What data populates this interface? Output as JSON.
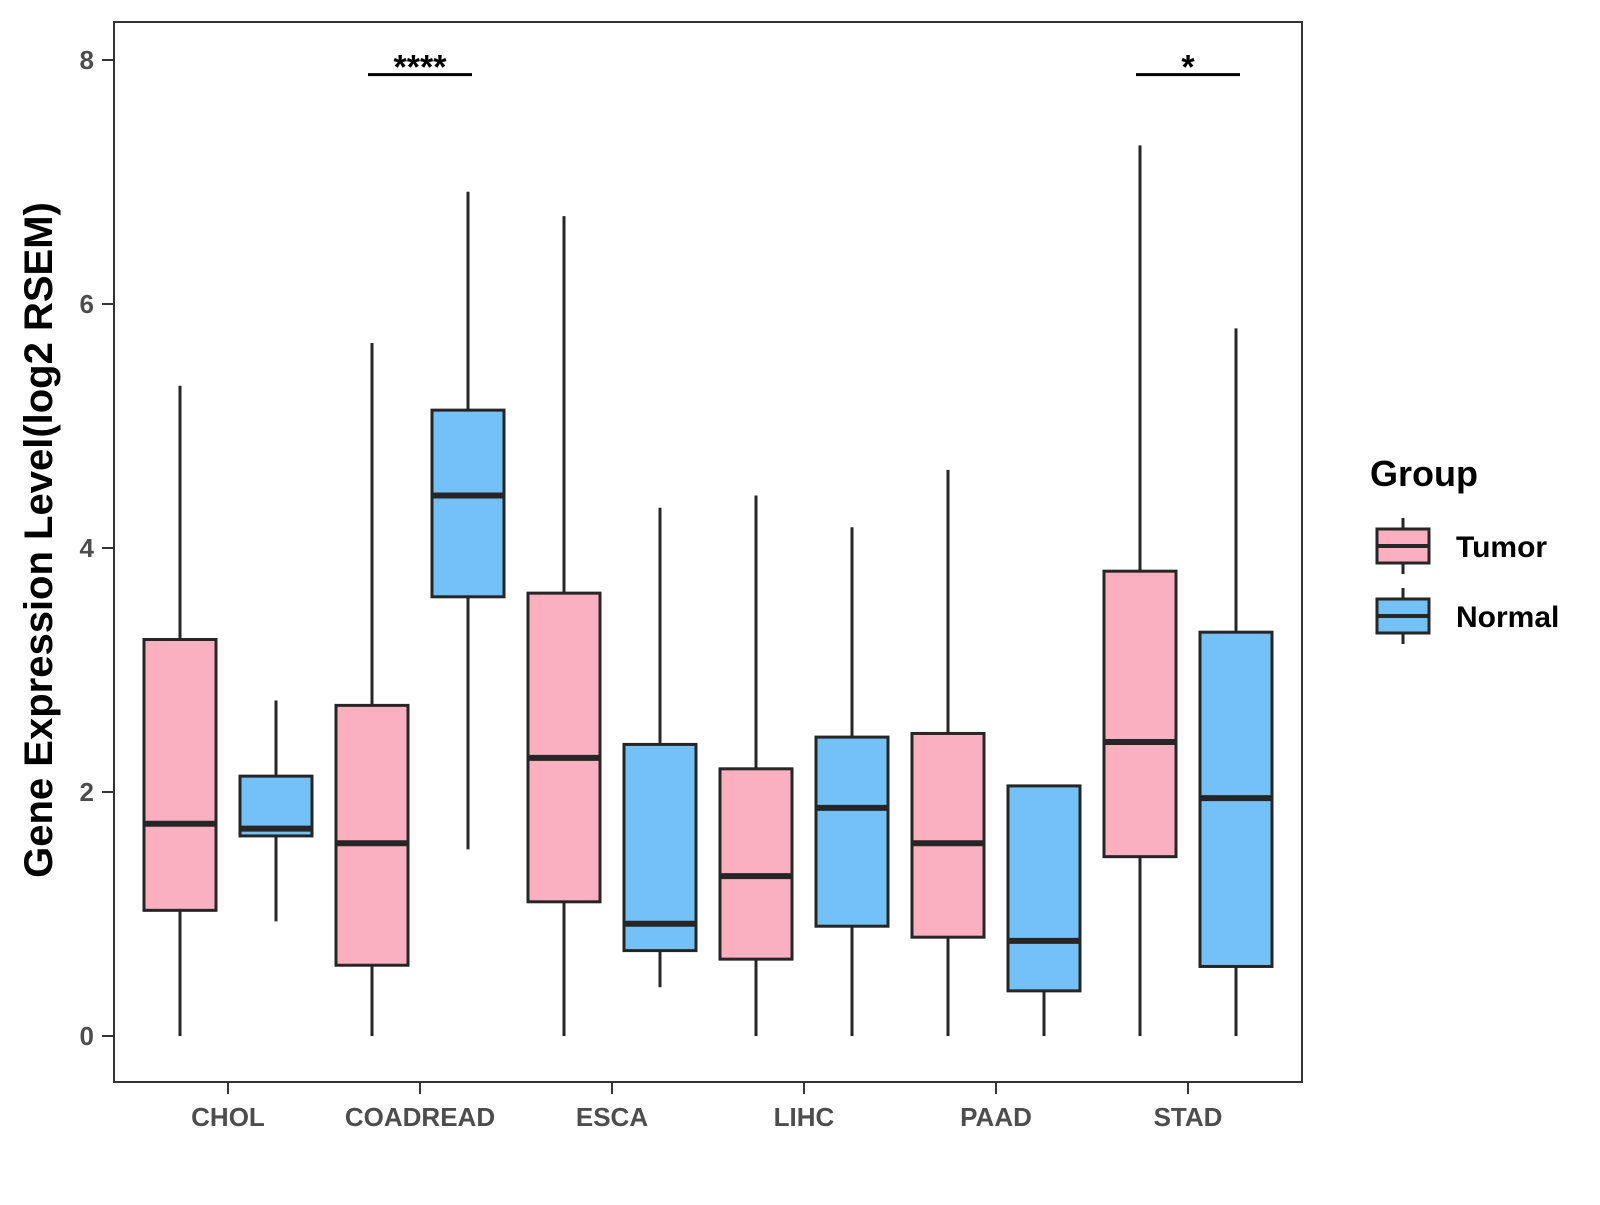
{
  "chart_data": {
    "type": "boxplot",
    "title": "",
    "xlabel": "",
    "ylabel": "Gene Expression Level(log2 RSEM)",
    "ylim": [
      -0.4,
      8.3
    ],
    "yticks": [
      0,
      2,
      4,
      6,
      8
    ],
    "categories": [
      "CHOL",
      "COADREAD",
      "ESCA",
      "LIHC",
      "PAAD",
      "STAD"
    ],
    "legend": {
      "title": "Group",
      "position": "right",
      "entries": [
        {
          "name": "Tumor",
          "color": "#FBB0C1"
        },
        {
          "name": "Normal",
          "color": "#74C1F8"
        }
      ]
    },
    "series": [
      {
        "name": "Tumor",
        "color": "#FBB0C1",
        "boxes": [
          {
            "min": 0.0,
            "q1": 1.03,
            "median": 1.74,
            "q3": 3.25,
            "max": 5.33
          },
          {
            "min": 0.0,
            "q1": 0.58,
            "median": 1.58,
            "q3": 2.71,
            "max": 5.68
          },
          {
            "min": 0.0,
            "q1": 1.1,
            "median": 2.28,
            "q3": 3.63,
            "max": 6.72
          },
          {
            "min": 0.0,
            "q1": 0.63,
            "median": 1.31,
            "q3": 2.19,
            "max": 4.43
          },
          {
            "min": 0.0,
            "q1": 0.81,
            "median": 1.58,
            "q3": 2.48,
            "max": 4.64
          },
          {
            "min": 0.0,
            "q1": 1.47,
            "median": 2.41,
            "q3": 3.81,
            "max": 7.3
          }
        ]
      },
      {
        "name": "Normal",
        "color": "#74C1F8",
        "boxes": [
          {
            "min": 0.94,
            "q1": 1.64,
            "median": 1.7,
            "q3": 2.13,
            "max": 2.75
          },
          {
            "min": 1.53,
            "q1": 3.6,
            "median": 4.43,
            "q3": 5.13,
            "max": 6.92
          },
          {
            "min": 0.4,
            "q1": 0.7,
            "median": 0.92,
            "q3": 2.39,
            "max": 4.33
          },
          {
            "min": 0.0,
            "q1": 0.9,
            "median": 1.87,
            "q3": 2.45,
            "max": 4.17
          },
          {
            "min": 0.0,
            "q1": 0.37,
            "median": 0.78,
            "q3": 2.05,
            "max": 2.05
          },
          {
            "min": 0.0,
            "q1": 0.57,
            "median": 1.95,
            "q3": 3.31,
            "max": 5.8
          }
        ]
      }
    ],
    "annotations": [
      {
        "category": "COADREAD",
        "label": "****",
        "y": 7.88
      },
      {
        "category": "STAD",
        "label": "*",
        "y": 7.88
      }
    ]
  }
}
